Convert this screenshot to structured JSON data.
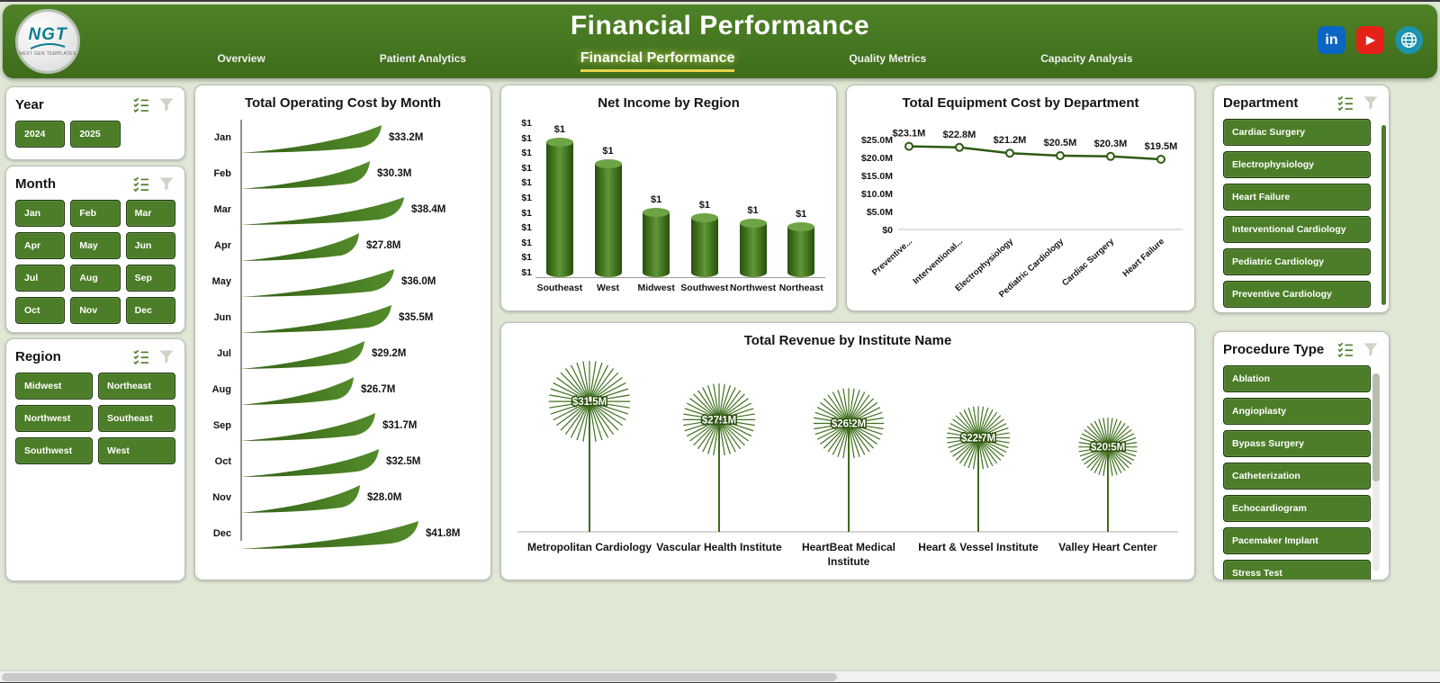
{
  "header": {
    "title": "Financial Performance",
    "logo": {
      "line1": "NGT",
      "line2": "NEXT GEN TEMPLATES"
    },
    "tabs": [
      {
        "label": "Overview",
        "active": false
      },
      {
        "label": "Patient Analytics",
        "active": false
      },
      {
        "label": "Financial Performance",
        "active": true
      },
      {
        "label": "Quality Metrics",
        "active": false
      },
      {
        "label": "Capacity Analysis",
        "active": false
      }
    ],
    "social": [
      {
        "name": "linkedin",
        "bg": "#0a66c2",
        "glyph": "in"
      },
      {
        "name": "youtube",
        "bg": "#e62117"
      },
      {
        "name": "website",
        "bg": "#1d93ad"
      }
    ]
  },
  "colors": {
    "header_green": "#44761f",
    "button_green": "#4c7d28",
    "leaf_green_dark": "#335e14",
    "leaf_green_light": "#538c2b",
    "accent_yellow": "#e8d44a",
    "page_bg": "#dfe8d4"
  },
  "filters": {
    "year": {
      "title": "Year",
      "options": [
        "2024",
        "2025"
      ]
    },
    "month": {
      "title": "Month",
      "options": [
        "Jan",
        "Feb",
        "Mar",
        "Apr",
        "May",
        "Jun",
        "Jul",
        "Aug",
        "Sep",
        "Oct",
        "Nov",
        "Dec"
      ]
    },
    "region": {
      "title": "Region",
      "options": [
        "Midwest",
        "Northeast",
        "Northwest",
        "Southeast",
        "Southwest",
        "West"
      ]
    },
    "department": {
      "title": "Department",
      "options": [
        "Cardiac Surgery",
        "Electrophysiology",
        "Heart Failure",
        "Interventional Cardiology",
        "Pediatric Cardiology",
        "Preventive Cardiology"
      ]
    },
    "procedure_type": {
      "title": "Procedure Type",
      "options": [
        "Ablation",
        "Angioplasty",
        "Bypass Surgery",
        "Catheterization",
        "Echocardiogram",
        "Pacemaker Implant",
        "Stress Test"
      ]
    }
  },
  "chart_data": [
    {
      "type": "bar",
      "orientation": "horizontal",
      "title": "Total Operating Cost by Month",
      "categories": [
        "Jan",
        "Feb",
        "Mar",
        "Apr",
        "May",
        "Jun",
        "Jul",
        "Aug",
        "Sep",
        "Oct",
        "Nov",
        "Dec"
      ],
      "values": [
        33.2,
        30.3,
        38.4,
        27.8,
        36.0,
        35.5,
        29.2,
        26.7,
        31.7,
        32.5,
        28.0,
        41.8
      ],
      "labels": [
        "$33.2M",
        "$30.3M",
        "$38.4M",
        "$27.8M",
        "$36.0M",
        "$35.5M",
        "$29.2M",
        "$26.7M",
        "$31.7M",
        "$32.5M",
        "$28.0M",
        "$41.8M"
      ],
      "unit": "M USD",
      "xlim": [
        0,
        41.8
      ]
    },
    {
      "type": "bar",
      "title": "Net Income by Region",
      "categories": [
        "Southeast",
        "West",
        "Midwest",
        "Southwest",
        "Northwest",
        "Northeast"
      ],
      "labels": [
        "$1",
        "$1",
        "$1",
        "$1",
        "$1",
        "$1"
      ],
      "relative_heights": [
        1.0,
        0.84,
        0.48,
        0.44,
        0.4,
        0.37
      ],
      "y_ticks": [
        "$1",
        "$1",
        "$1",
        "$1",
        "$1",
        "$1",
        "$1",
        "$1",
        "$1",
        "$1",
        "$1"
      ],
      "note": "data labels and axis labels are truncated to $1 in the source image"
    },
    {
      "type": "line",
      "title": "Total Equipment Cost by Department",
      "categories": [
        "Preventive...",
        "Interventional...",
        "Electrophysiology",
        "Pediatric Cardiology",
        "Cardiac Surgery",
        "Heart Failure"
      ],
      "values": [
        23.1,
        22.8,
        21.2,
        20.5,
        20.3,
        19.5
      ],
      "labels": [
        "$23.1M",
        "$22.8M",
        "$21.2M",
        "$20.5M",
        "$20.3M",
        "$19.5M"
      ],
      "y_ticks": [
        "$25.0M",
        "$20.0M",
        "$15.0M",
        "$10.0M",
        "$5.0M",
        "$0"
      ],
      "ylim": [
        0,
        25
      ],
      "unit": "M USD"
    },
    {
      "type": "scatter",
      "variant": "dandelion",
      "title": "Total Revenue by Institute Name",
      "categories": [
        "Metropolitan Cardiology",
        "Vascular Health Institute",
        "HeartBeat Medical Institute",
        "Heart & Vessel Institute",
        "Valley Heart Center"
      ],
      "label_lines": [
        [
          "Metropolitan Cardiology"
        ],
        [
          "Vascular Health Institute"
        ],
        [
          "HeartBeat Medical",
          "Institute"
        ],
        [
          "Heart & Vessel Institute"
        ],
        [
          "Valley Heart Center"
        ]
      ],
      "values": [
        31.5,
        27.1,
        26.2,
        22.7,
        20.5
      ],
      "labels": [
        "$31.5M",
        "$27.1M",
        "$26.2M",
        "$22.7M",
        "$20.5M"
      ],
      "unit": "M USD"
    }
  ]
}
